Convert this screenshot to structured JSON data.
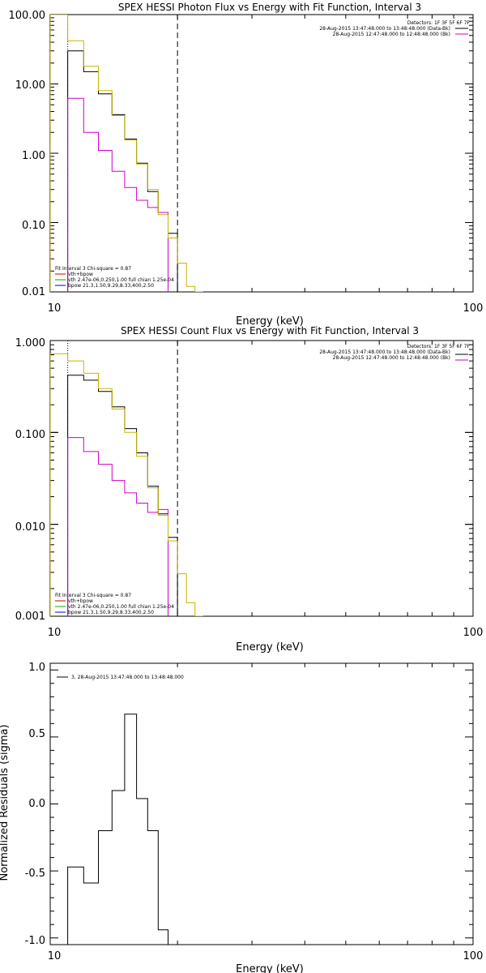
{
  "chart_data": [
    {
      "type": "line",
      "title": "SPEX HESSI Photon Flux vs Energy with Fit Function, Interval 3",
      "xlabel": "Energy (keV)",
      "ylabel": "",
      "xscale": "log",
      "yscale": "log",
      "xlim": [
        10,
        100
      ],
      "ylim": [
        0.01,
        100
      ],
      "x_ticks": [
        10,
        100
      ],
      "x_tick_labels": [
        "10",
        "100"
      ],
      "y_ticks": [
        0.01,
        0.1,
        1,
        10,
        100
      ],
      "y_tick_labels": [
        "0.01",
        "0.10",
        "1.00",
        "10.00",
        "100.00"
      ],
      "fit_range_line_x": 20,
      "legend_top": {
        "detectors": "Detectors: 1F 3F 5F 6F 7F",
        "lines": [
          {
            "text": "28-Aug-2015 13:47:48.000 to 13:48:48.000 (Data-Bk)",
            "color": "#000000"
          },
          {
            "text": "28-Aug-2015 12:47:48.000 to 12:48:48.000 (Bk)",
            "color": "#cc00cc"
          }
        ]
      },
      "legend_bottom": {
        "header": "Fit Interval 3   Chi-square = 0.87",
        "lines": [
          {
            "text": "vth+bpow",
            "color": "#cc0000"
          },
          {
            "text": "vth 2.47e-06,0.250,1.00  full chian 1.25e-04",
            "color": "#00b000"
          },
          {
            "text": "bpow 21.3,1.50,9.29,8.33,400,2.50",
            "color": "#0000cc"
          }
        ]
      },
      "bin_edges": [
        10,
        11,
        12,
        13,
        14,
        15,
        16,
        17,
        18,
        19,
        20,
        21,
        22,
        23,
        24
      ],
      "series": [
        {
          "name": "Data-Bk",
          "color": "#000000",
          "values": [
            null,
            30,
            15,
            7.2,
            3.6,
            1.6,
            0.72,
            0.28,
            0.14,
            0.07
          ]
        },
        {
          "name": "Bk",
          "color": "#cc00cc",
          "values": [
            null,
            6.2,
            2.0,
            1.1,
            0.55,
            0.32,
            0.21,
            0.165,
            0.14
          ]
        },
        {
          "name": "Fit",
          "color": "#c8b400",
          "values": [
            100,
            42,
            18,
            8.0,
            3.5,
            1.55,
            0.7,
            0.3,
            0.13,
            0.06,
            0.026,
            0.012,
            0.01
          ]
        }
      ]
    },
    {
      "type": "line",
      "title": "SPEX HESSI Count Flux vs Energy with Fit Function, Interval 3",
      "xlabel": "Energy (keV)",
      "ylabel": "",
      "xscale": "log",
      "yscale": "log",
      "xlim": [
        10,
        100
      ],
      "ylim": [
        0.001,
        1
      ],
      "x_ticks": [
        10,
        100
      ],
      "x_tick_labels": [
        "10",
        "100"
      ],
      "y_ticks": [
        0.001,
        0.01,
        0.1,
        1
      ],
      "y_tick_labels": [
        "0.001",
        "0.010",
        "0.100",
        "1.000"
      ],
      "fit_range_line_x": 20,
      "legend_top": {
        "detectors": "Detectors: 1F 3F 5F 6F 7F",
        "lines": [
          {
            "text": "28-Aug-2015 13:47:48.000 to 13:48:48.000 (Data-Bk)",
            "color": "#000000"
          },
          {
            "text": "28-Aug-2015 12:47:48.000 to 12:48:48.000 (Bk)",
            "color": "#cc00cc"
          }
        ]
      },
      "legend_bottom": {
        "header": "Fit Interval 3   Chi-square = 0.87",
        "lines": [
          {
            "text": "vth+bpow",
            "color": "#cc0000"
          },
          {
            "text": "vth 2.47e-06,0.250,1.00  full chian 1.25e-04",
            "color": "#00b000"
          },
          {
            "text": "bpow 21.3,1.50,9.29,8.33,400,2.50",
            "color": "#0000cc"
          }
        ]
      },
      "bin_edges": [
        10,
        11,
        12,
        13,
        14,
        15,
        16,
        17,
        18,
        19,
        20,
        21,
        22,
        23,
        24
      ],
      "series": [
        {
          "name": "Data-Bk",
          "color": "#000000",
          "values": [
            null,
            0.42,
            0.37,
            0.28,
            0.19,
            0.11,
            0.06,
            0.026,
            0.013,
            0.0072
          ]
        },
        {
          "name": "Bk",
          "color": "#cc00cc",
          "values": [
            null,
            0.088,
            0.062,
            0.045,
            0.03,
            0.022,
            0.017,
            0.0135,
            0.0145
          ]
        },
        {
          "name": "Fit",
          "color": "#c8b400",
          "values": [
            0.72,
            0.6,
            0.44,
            0.3,
            0.18,
            0.1,
            0.055,
            0.025,
            0.0125,
            0.0066,
            0.0029,
            0.0014,
            0.001
          ]
        }
      ]
    },
    {
      "type": "line",
      "title": "",
      "xlabel": "Energy (keV)",
      "ylabel": "Normalized Residuals (sigma)",
      "xscale": "log",
      "yscale": "linear",
      "xlim": [
        10,
        100
      ],
      "ylim": [
        -1.05,
        1.05
      ],
      "x_ticks": [
        10,
        100
      ],
      "x_tick_labels": [
        "10",
        "100"
      ],
      "y_ticks": [
        -1,
        -0.5,
        0,
        0.5,
        1
      ],
      "y_tick_labels": [
        "-1.0",
        "-0.5",
        "0.0",
        "0.5",
        "1.0"
      ],
      "legend_top": {
        "lines": [
          {
            "text": "3, 28-Aug-2015 13:47:48.000 to 13:48:48.000",
            "color": "#000000"
          }
        ]
      },
      "bin_edges": [
        10,
        11,
        12,
        13,
        14,
        15,
        16,
        17,
        18,
        19,
        20
      ],
      "series": [
        {
          "name": "Residuals",
          "color": "#000000",
          "values": [
            null,
            -0.47,
            -0.59,
            -0.2,
            0.1,
            0.67,
            0.04,
            -0.2,
            -0.94
          ]
        }
      ]
    }
  ]
}
